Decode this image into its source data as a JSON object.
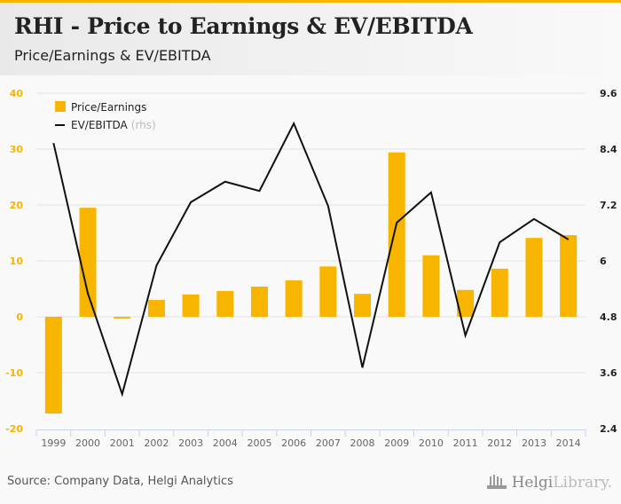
{
  "header": {
    "title": "RHI - Price to Earnings & EV/EBITDA",
    "subtitle": "Price/Earnings & EV/EBITDA"
  },
  "footer": {
    "source": "Source: Company Data, Helgi Analytics",
    "logo_bold": "Helgi",
    "logo_light": "Library."
  },
  "colors": {
    "bar": "#f7b500",
    "line": "#111111",
    "grid": "#e2e2e2",
    "axis": "#c9d3e6"
  },
  "chart_data": {
    "type": "bar",
    "title": "Price/Earnings & EV/EBITDA",
    "categories": [
      "1999",
      "2000",
      "2001",
      "2002",
      "2003",
      "2004",
      "2005",
      "2006",
      "2007",
      "2008",
      "2009",
      "2010",
      "2011",
      "2012",
      "2013",
      "2014"
    ],
    "series": [
      {
        "name": "Price/Earnings",
        "type": "bar",
        "axis": "left",
        "values": [
          -17.3,
          19.5,
          -0.3,
          3.0,
          4.0,
          4.6,
          5.4,
          6.5,
          9.0,
          4.1,
          29.4,
          11.0,
          4.8,
          8.6,
          14.1,
          14.6
        ]
      },
      {
        "name": "EV/EBITDA",
        "legend_suffix": "(rhs)",
        "type": "line",
        "axis": "right",
        "values": [
          8.53,
          5.3,
          3.14,
          5.9,
          7.26,
          7.7,
          7.5,
          8.95,
          7.18,
          3.71,
          6.82,
          7.47,
          4.4,
          6.4,
          6.9,
          6.46
        ]
      }
    ],
    "left_axis": {
      "ylim": [
        -20,
        40
      ],
      "ticks": [
        "-20",
        "-10",
        "0",
        "10",
        "20",
        "30",
        "40"
      ]
    },
    "right_axis": {
      "ylim": [
        2.4,
        9.6
      ],
      "ticks": [
        "2.4",
        "3.6",
        "4.8",
        "6",
        "7.2",
        "8.4",
        "9.6"
      ]
    },
    "xlabel": "",
    "ylabel": "",
    "grid": true,
    "legend_position": "top-left"
  }
}
